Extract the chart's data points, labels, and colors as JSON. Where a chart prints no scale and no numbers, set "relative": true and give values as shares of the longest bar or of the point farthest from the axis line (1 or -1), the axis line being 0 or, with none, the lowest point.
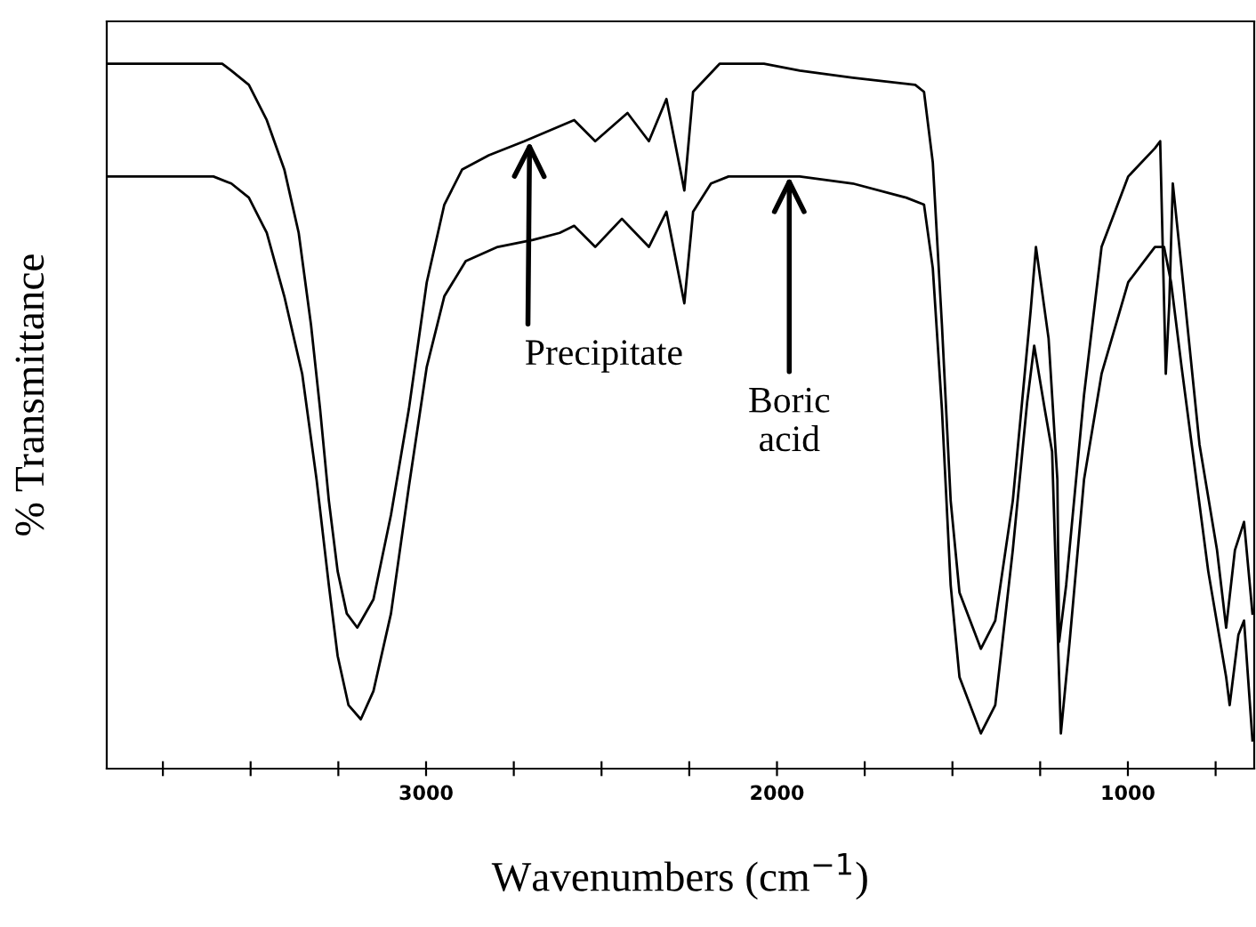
{
  "chart_data": {
    "type": "line",
    "relative": true,
    "xlabel": "Wavenumbers (cm$^{−1}$)",
    "ylabel": "% Transmittance",
    "xlim": [
      3910,
      640
    ],
    "xticks": [
      {
        "value": 3750,
        "label": null
      },
      {
        "value": 3500,
        "label": null
      },
      {
        "value": 3250,
        "label": null
      },
      3000,
      {
        "value": 2750,
        "label": null
      },
      {
        "value": 2500,
        "label": null
      },
      {
        "value": 2250,
        "label": null
      },
      2000,
      {
        "value": 1750,
        "label": null
      },
      {
        "value": 1500,
        "label": null
      },
      {
        "value": 1250,
        "label": null
      },
      1000,
      {
        "value": 750,
        "label": null
      }
    ],
    "tick_labels": "x",
    "grid": false,
    "legend": false,
    "marker": "none",
    "line_style": "solid",
    "series": [
      {
        "color": "#000000",
        "x": [
          3910,
          3581,
          3555,
          3505,
          3454,
          3404,
          3363,
          3328,
          3302,
          3277,
          3252,
          3226,
          3196,
          3150,
          3100,
          3049,
          2998,
          2948,
          2897,
          2821,
          2720,
          2578,
          2518,
          2426,
          2365,
          2315,
          2264,
          2239,
          2163,
          2037,
          1935,
          1784,
          1606,
          1581,
          1556,
          1530,
          1505,
          1480,
          1419,
          1378,
          1328,
          1277,
          1262,
          1226,
          1201,
          1196,
          1176,
          1125,
          1075,
          999,
          923,
          908,
          892,
          882,
          872,
          847,
          796,
          746,
          720,
          695,
          669,
          645
        ],
        "values": [
          1.0,
          1.0,
          0.99,
          0.97,
          0.92,
          0.85,
          0.76,
          0.63,
          0.51,
          0.38,
          0.28,
          0.22,
          0.2,
          0.24,
          0.36,
          0.51,
          0.69,
          0.8,
          0.85,
          0.87,
          0.89,
          0.92,
          0.89,
          0.93,
          0.89,
          0.95,
          0.82,
          0.96,
          1.0,
          1.0,
          0.99,
          0.98,
          0.97,
          0.96,
          0.86,
          0.63,
          0.38,
          0.25,
          0.17,
          0.21,
          0.38,
          0.65,
          0.74,
          0.61,
          0.41,
          0.18,
          0.26,
          0.53,
          0.74,
          0.84,
          0.88,
          0.89,
          0.56,
          0.66,
          0.83,
          0.71,
          0.46,
          0.31,
          0.2,
          0.31,
          0.35,
          0.22
        ]
      },
      {
        "color": "#000000",
        "x": [
          3910,
          3606,
          3555,
          3505,
          3454,
          3404,
          3353,
          3312,
          3277,
          3252,
          3221,
          3186,
          3150,
          3100,
          3049,
          2998,
          2948,
          2887,
          2796,
          2695,
          2619,
          2578,
          2518,
          2442,
          2365,
          2315,
          2264,
          2239,
          2188,
          2138,
          2037,
          1935,
          1784,
          1632,
          1581,
          1556,
          1530,
          1505,
          1480,
          1419,
          1378,
          1328,
          1287,
          1267,
          1237,
          1216,
          1191,
          1166,
          1125,
          1075,
          999,
          923,
          897,
          877,
          847,
          771,
          720,
          710,
          685,
          669,
          645
        ],
        "values": [
          0.84,
          0.84,
          0.83,
          0.81,
          0.76,
          0.67,
          0.56,
          0.41,
          0.26,
          0.16,
          0.09,
          0.07,
          0.11,
          0.22,
          0.4,
          0.57,
          0.67,
          0.72,
          0.74,
          0.75,
          0.76,
          0.77,
          0.74,
          0.78,
          0.74,
          0.79,
          0.66,
          0.79,
          0.83,
          0.84,
          0.84,
          0.84,
          0.83,
          0.81,
          0.8,
          0.71,
          0.51,
          0.26,
          0.13,
          0.05,
          0.09,
          0.31,
          0.52,
          0.6,
          0.51,
          0.45,
          0.05,
          0.18,
          0.41,
          0.56,
          0.69,
          0.74,
          0.74,
          0.69,
          0.57,
          0.28,
          0.13,
          0.09,
          0.19,
          0.21,
          0.04
        ]
      }
    ],
    "annotations": [
      {
        "text": "Precipitate",
        "x": 2705,
        "y": 0.89
      },
      {
        "text": "Boric\nacid",
        "x": 1965,
        "y": 0.84
      }
    ]
  }
}
